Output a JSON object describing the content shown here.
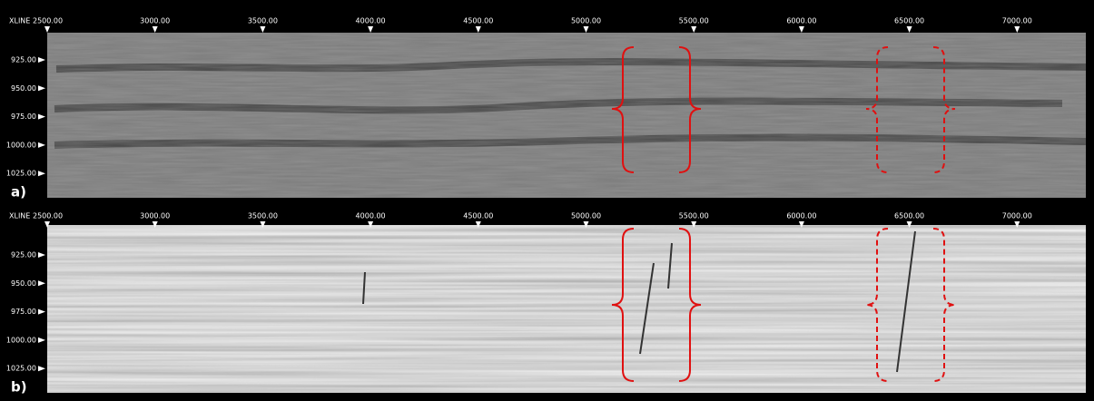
{
  "panels": [
    {
      "label": "a)",
      "x_axis_title": "XLINE",
      "x_ticks": [
        "2500.00",
        "3000.00",
        "3500.00",
        "4000.00",
        "4500.00",
        "5000.00",
        "5500.00",
        "6000.00",
        "6500.00",
        "7000.00"
      ],
      "y_ticks": [
        "925.00",
        "950.00",
        "975.00",
        "1000.00",
        "1025.00"
      ]
    },
    {
      "label": "b)",
      "x_axis_title": "XLINE",
      "x_ticks": [
        "2500.00",
        "3000.00",
        "3500.00",
        "4000.00",
        "4500.00",
        "5000.00",
        "5500.00",
        "6000.00",
        "6500.00",
        "7000.00"
      ],
      "y_ticks": [
        "925.00",
        "950.00",
        "975.00",
        "1000.00",
        "1025.00"
      ]
    }
  ]
}
